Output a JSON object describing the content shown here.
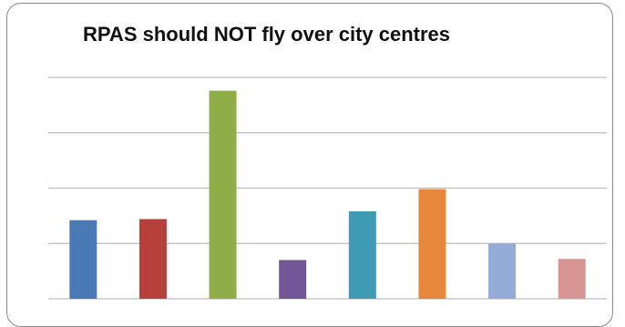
{
  "chart_data": {
    "type": "bar",
    "title": "RPAS should NOT fly over city centres",
    "xlabel": "",
    "ylabel": "",
    "ylim": [
      0,
      4
    ],
    "grid": true,
    "legend": "none",
    "categories": [
      "",
      "",
      "",
      "",
      "",
      "",
      "",
      ""
    ],
    "values": [
      1.42,
      1.44,
      3.76,
      0.7,
      1.58,
      1.98,
      1.0,
      0.72
    ],
    "colors": [
      "#4a7ab5",
      "#b5403c",
      "#8fae4a",
      "#735697",
      "#3e9bb3",
      "#e6873c",
      "#93abd6",
      "#d99593"
    ]
  }
}
